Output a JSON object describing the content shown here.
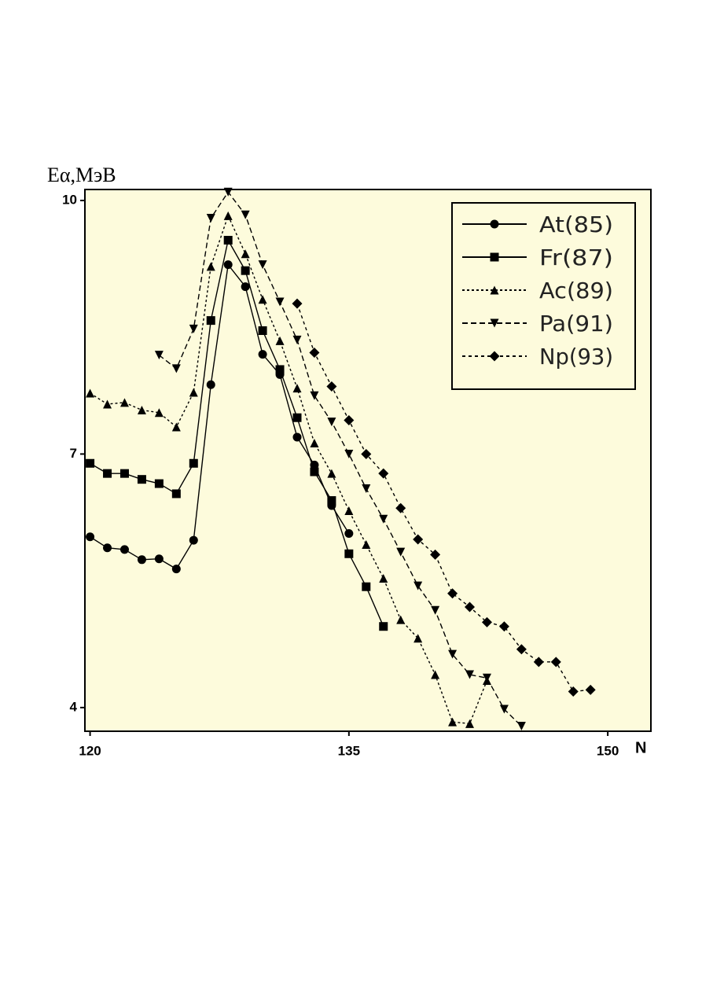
{
  "chart_data": {
    "type": "line",
    "y_label": "Eα,МэВ",
    "x_label": "N",
    "xlim": [
      119.7,
      152.5
    ],
    "ylim": [
      3.72,
      10.13
    ],
    "xticks": [
      120,
      135,
      150
    ],
    "yticks": [
      4,
      7,
      10
    ],
    "background": "#fdfbdc",
    "legend": "top-right",
    "series": [
      {
        "name": "At(85)",
        "color": "#000000",
        "marker": "circle",
        "dash": "none",
        "x": [
          120,
          121,
          122,
          123,
          124,
          125,
          126,
          127,
          128,
          129,
          130,
          131,
          132,
          133,
          134,
          135
        ],
        "values": [
          6.02,
          5.89,
          5.87,
          5.75,
          5.76,
          5.64,
          5.98,
          7.82,
          9.24,
          8.98,
          8.18,
          7.94,
          7.2,
          6.87,
          6.39,
          6.06
        ]
      },
      {
        "name": "Fr(87)",
        "color": "#000000",
        "marker": "square",
        "dash": "none",
        "x": [
          120,
          121,
          122,
          123,
          124,
          125,
          126,
          127,
          128,
          129,
          130,
          131,
          132,
          133,
          134,
          135,
          136,
          137
        ],
        "values": [
          6.89,
          6.77,
          6.77,
          6.7,
          6.65,
          6.53,
          6.89,
          8.58,
          9.53,
          9.17,
          8.46,
          8.0,
          7.43,
          6.79,
          6.45,
          5.82,
          5.43,
          4.96
        ]
      },
      {
        "name": "Ac(89)",
        "color": "#000000",
        "marker": "triangle",
        "dash": "3,3",
        "x": [
          120,
          121,
          122,
          123,
          124,
          125,
          126,
          127,
          128,
          129,
          130,
          131,
          132,
          133,
          134,
          135,
          136,
          137,
          138,
          139,
          140,
          141,
          142,
          143
        ],
        "values": [
          7.72,
          7.59,
          7.61,
          7.52,
          7.49,
          7.32,
          7.73,
          9.22,
          9.82,
          9.37,
          8.83,
          8.34,
          7.78,
          7.13,
          6.77,
          6.33,
          5.93,
          5.53,
          5.04,
          4.82,
          4.39,
          3.83,
          3.81,
          4.32
        ]
      },
      {
        "name": "Pa(91)",
        "color": "#000000",
        "marker": "triangle-down",
        "dash": "7,4",
        "x": [
          124,
          125,
          126,
          127,
          128,
          129,
          130,
          131,
          132,
          133,
          134,
          135,
          136,
          137,
          138,
          139,
          140,
          141,
          142,
          143,
          144,
          145
        ],
        "values": [
          8.17,
          8.01,
          8.48,
          9.79,
          10.1,
          9.83,
          9.24,
          8.8,
          8.35,
          7.69,
          7.38,
          7.0,
          6.59,
          6.23,
          5.84,
          5.44,
          5.15,
          4.63,
          4.39,
          4.35,
          3.98,
          3.78
        ]
      },
      {
        "name": "Np(93)",
        "color": "#000000",
        "marker": "diamond",
        "dash": "4,4",
        "x": [
          132,
          133,
          134,
          135,
          136,
          137,
          138,
          139,
          140,
          141,
          142,
          143,
          144,
          145,
          146,
          147,
          148,
          149
        ],
        "values": [
          8.78,
          8.2,
          7.8,
          7.4,
          7.0,
          6.77,
          6.36,
          5.99,
          5.81,
          5.35,
          5.19,
          5.01,
          4.96,
          4.69,
          4.54,
          4.54,
          4.19,
          4.21
        ]
      }
    ]
  }
}
